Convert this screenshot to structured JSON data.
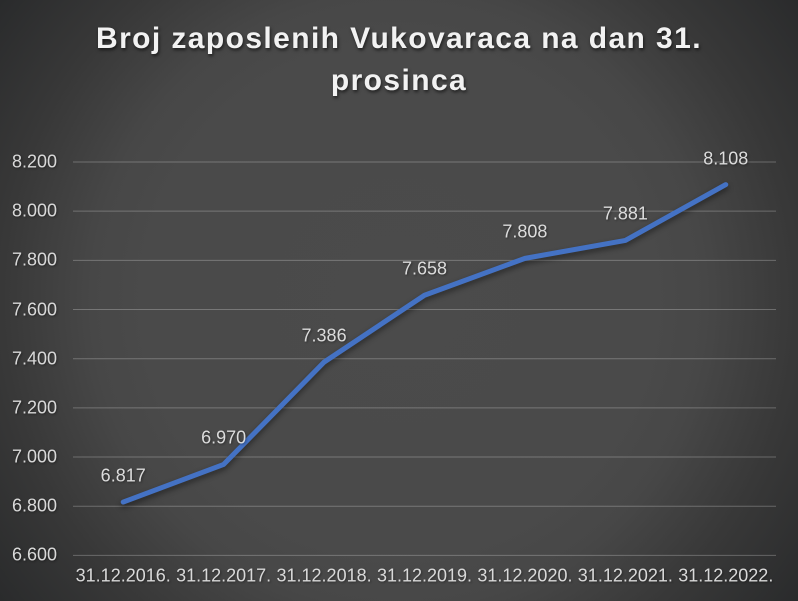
{
  "chart_data": {
    "type": "line",
    "title": "Broj zaposlenih Vukovaraca na dan 31. prosinca",
    "categories": [
      "31.12.2016.",
      "31.12.2017.",
      "31.12.2018.",
      "31.12.2019.",
      "31.12.2020.",
      "31.12.2021.",
      "31.12.2022."
    ],
    "values": [
      6817,
      6970,
      7386,
      7658,
      7808,
      7881,
      8108
    ],
    "value_labels": [
      "6.817",
      "6.970",
      "7.386",
      "7.658",
      "7.808",
      "7.881",
      "8.108"
    ],
    "y_ticks": [
      {
        "value": 6600,
        "label": "6.600"
      },
      {
        "value": 6800,
        "label": "6.800"
      },
      {
        "value": 7000,
        "label": "7.000"
      },
      {
        "value": 7200,
        "label": "7.200"
      },
      {
        "value": 7400,
        "label": "7.400"
      },
      {
        "value": 7600,
        "label": "7.600"
      },
      {
        "value": 7800,
        "label": "7.800"
      },
      {
        "value": 8000,
        "label": "8.000"
      },
      {
        "value": 8200,
        "label": "8.200"
      }
    ],
    "ylim": [
      6600,
      8200
    ],
    "xlabel": "",
    "ylabel": "",
    "grid": true,
    "legend": false,
    "colors": {
      "line": "#4472C4",
      "gridline": "rgba(255,255,255,0.25)",
      "title_text": "#f2f2f2",
      "label_text": "#d9d9d9",
      "background_center": "#4b4b4b",
      "background_edge": "#262728"
    }
  }
}
